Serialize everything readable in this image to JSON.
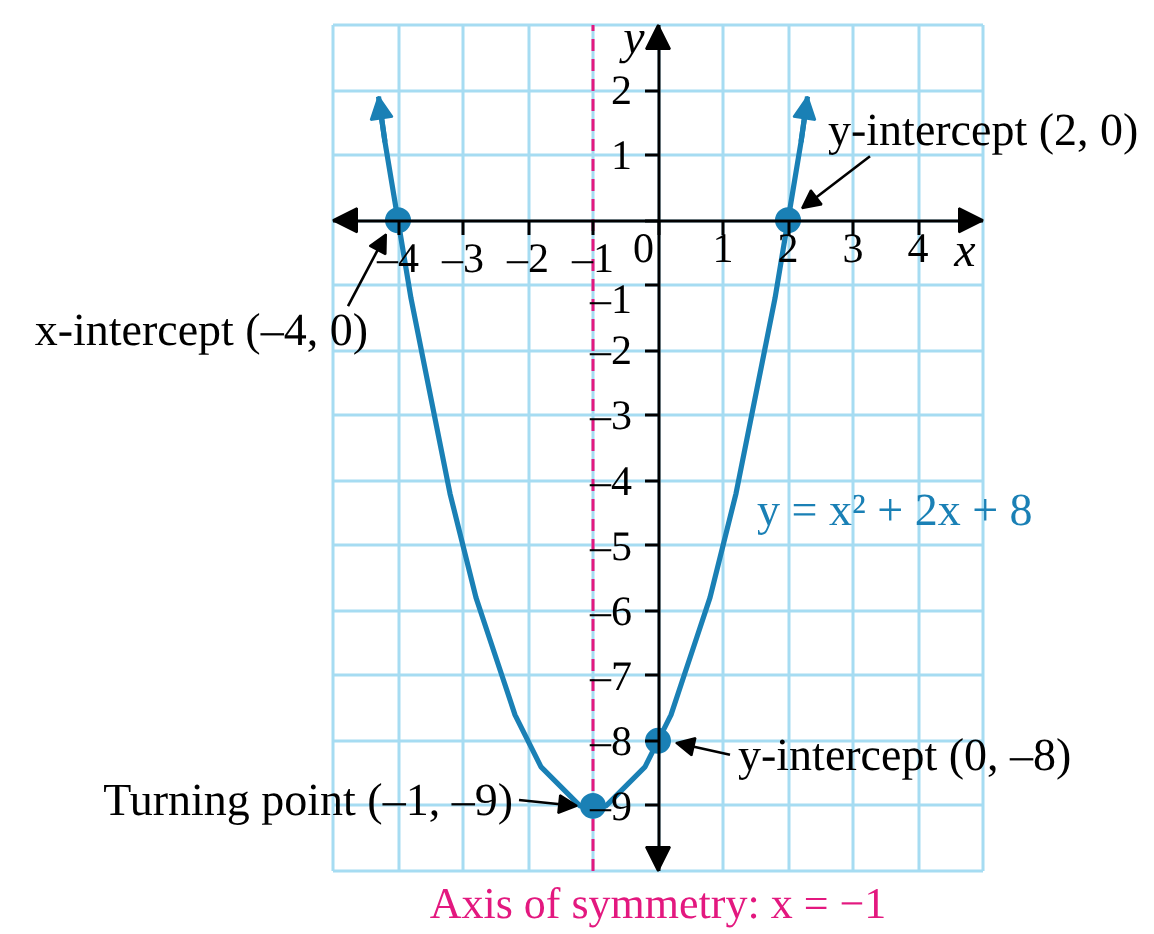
{
  "chart_data": {
    "type": "line",
    "xlabel": "x",
    "ylabel": "y",
    "xlim": [
      -5,
      5
    ],
    "ylim": [
      -10,
      3
    ],
    "xticks": [
      {
        "value": -4,
        "label": "–4"
      },
      {
        "value": -3,
        "label": "–3"
      },
      {
        "value": -2,
        "label": "–2"
      },
      {
        "value": -1,
        "label": "–1"
      },
      0,
      1,
      2,
      3,
      4
    ],
    "yticks": [
      2,
      1,
      {
        "value": 0,
        "label": null
      },
      {
        "value": -1,
        "label": "–1"
      },
      {
        "value": -2,
        "label": "–2"
      },
      {
        "value": -3,
        "label": "–3"
      },
      {
        "value": -4,
        "label": "–4"
      },
      {
        "value": -5,
        "label": "–5"
      },
      {
        "value": -6,
        "label": "–6"
      },
      {
        "value": -7,
        "label": "–7"
      },
      {
        "value": -8,
        "label": "–8"
      },
      {
        "value": -9,
        "label": "–9"
      }
    ],
    "grid": true,
    "series": [
      {
        "name": "y = x² + 2x + 8",
        "color": "#1a80b5",
        "x": [
          -4.3,
          -4.2,
          -4.0,
          -3.8,
          -3.6,
          -3.4,
          -3.2,
          -3.0,
          -2.8,
          -2.6,
          -2.4,
          -2.2,
          -2.0,
          -1.8,
          -1.6,
          -1.4,
          -1.2,
          -1.0,
          -0.8,
          -0.6,
          -0.4,
          -0.2,
          0,
          0.2,
          0.4,
          0.6,
          0.8,
          1.0,
          1.2,
          1.4,
          1.6,
          1.8,
          2.0,
          2.2,
          2.3
        ],
        "values": [
          1.9,
          1.2,
          0,
          -1.2,
          -2.2,
          -3.2,
          -4.2,
          -5,
          -5.8,
          -6.4,
          -7,
          -7.6,
          -8,
          -8.4,
          -8.6,
          -8.8,
          -9,
          -9,
          -9,
          -8.8,
          -8.6,
          -8.4,
          -8,
          -7.6,
          -7,
          -6.4,
          -5.8,
          -5,
          -4.2,
          -3.2,
          -2.2,
          -1.2,
          0,
          1.2,
          1.9
        ]
      },
      {
        "type": "scatter",
        "color": "#1a80b5",
        "marker": "circle",
        "x": [
          -4,
          2,
          0,
          -1
        ],
        "values": [
          0,
          0,
          -8,
          -9
        ]
      }
    ],
    "ref_lines": [
      {
        "axis": "x",
        "value": -1,
        "label": "Axis of symmetry: x = −1",
        "color": "#e3187f",
        "line_style": "dashed"
      }
    ],
    "annotations": [
      {
        "text": "y-intercept (2, 0)",
        "x": 2,
        "y": 0
      },
      {
        "text": "x-intercept (–4, 0)",
        "x": -4,
        "y": 0
      },
      {
        "text": "y-intercept (0, –8)",
        "x": 0,
        "y": -8
      },
      {
        "text": "Turning point (–1, –9)",
        "x": -1,
        "y": -9
      }
    ]
  }
}
